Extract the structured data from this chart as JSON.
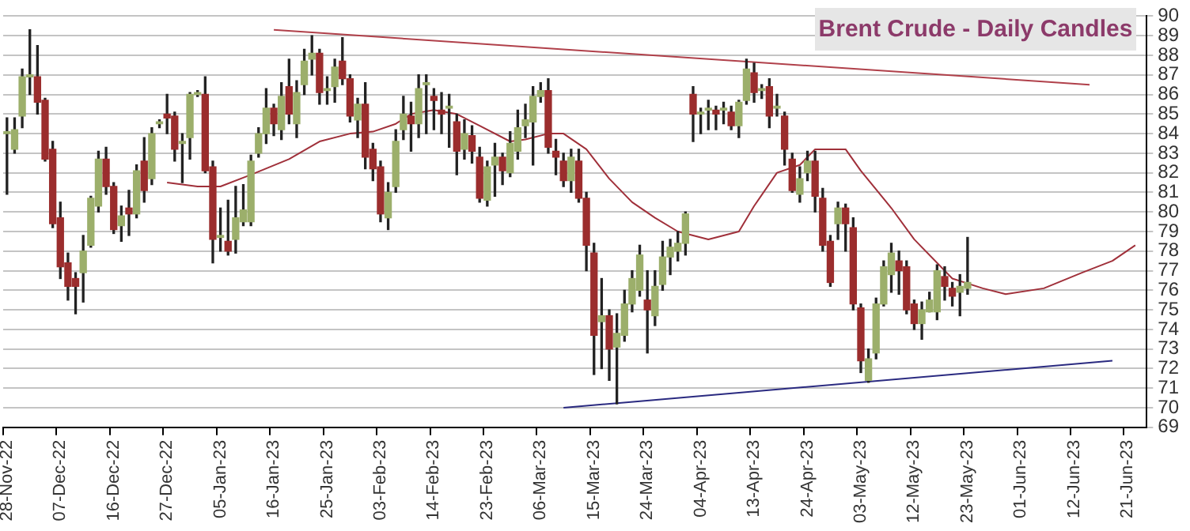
{
  "chart_data": {
    "type": "candlestick",
    "title": "Brent Crude - Daily Candles",
    "categories": [
      "28-Nov-22",
      null,
      null,
      null,
      null,
      null,
      null,
      "07-Dec-22",
      null,
      null,
      null,
      null,
      null,
      null,
      "16-Dec-22",
      null,
      null,
      null,
      null,
      null,
      null,
      "27-Dec-22",
      null,
      null,
      null,
      null,
      null,
      null,
      "05-Jan-23",
      null,
      null,
      null,
      null,
      null,
      null,
      "16-Jan-23",
      null,
      null,
      null,
      null,
      null,
      null,
      "25-Jan-23",
      null,
      null,
      null,
      null,
      null,
      null,
      "03-Feb-23",
      null,
      null,
      null,
      null,
      null,
      null,
      "14-Feb-23",
      null,
      null,
      null,
      null,
      null,
      null,
      "23-Feb-23",
      null,
      null,
      null,
      null,
      null,
      null,
      "06-Mar-23",
      null,
      null,
      null,
      null,
      null,
      null,
      "15-Mar-23",
      null,
      null,
      null,
      null,
      null,
      null,
      "24-Mar-23",
      null,
      null,
      null,
      null,
      null,
      null,
      "04-Apr-23",
      null,
      null,
      null,
      null,
      null,
      null,
      "13-Apr-23",
      null,
      null,
      null,
      null,
      null,
      null,
      "24-Apr-23",
      null,
      null,
      null,
      null,
      null,
      null,
      "03-May-23",
      null,
      null,
      null,
      null,
      null,
      null,
      "12-May-23",
      null,
      null,
      null,
      null,
      null,
      null,
      "23-May-23",
      null,
      null,
      null,
      null,
      null,
      null,
      "01-Jun-23",
      null,
      null,
      null,
      null,
      null,
      null,
      "12-Jun-23",
      null,
      null,
      null,
      null,
      null,
      null,
      "21-Jun-23",
      null,
      null
    ],
    "ohlc": [
      [
        84.0,
        84.8,
        80.9,
        84.1
      ],
      [
        83.2,
        84.8,
        83.0,
        84.2
      ],
      [
        84.9,
        87.3,
        84.3,
        86.9
      ],
      [
        86.9,
        89.3,
        86.0,
        87.0
      ],
      [
        86.9,
        88.5,
        85.0,
        85.6
      ],
      [
        85.7,
        85.8,
        82.6,
        82.7
      ],
      [
        83.2,
        83.6,
        79.2,
        79.4
      ],
      [
        79.7,
        80.5,
        76.6,
        77.2
      ],
      [
        77.4,
        77.9,
        75.5,
        76.2
      ],
      [
        76.6,
        76.9,
        74.8,
        76.2
      ],
      [
        76.9,
        78.8,
        75.4,
        78.0
      ],
      [
        78.3,
        80.8,
        78.2,
        80.7
      ],
      [
        80.3,
        83.1,
        80.0,
        82.7
      ],
      [
        82.7,
        83.3,
        80.9,
        81.3
      ],
      [
        81.3,
        81.5,
        78.9,
        79.1
      ],
      [
        79.3,
        80.3,
        78.5,
        79.8
      ],
      [
        80.2,
        81.1,
        78.8,
        79.9
      ],
      [
        79.9,
        82.4,
        79.7,
        82.1
      ],
      [
        82.6,
        83.8,
        80.5,
        81.1
      ],
      [
        81.7,
        84.3,
        81.4,
        84.0
      ],
      [
        84.5,
        84.7,
        84.3,
        84.6
      ],
      [
        85.0,
        86.0,
        84.0,
        84.8
      ],
      [
        84.9,
        85.1,
        82.6,
        83.2
      ],
      [
        83.5,
        84.0,
        81.5,
        83.6
      ],
      [
        83.8,
        86.1,
        82.7,
        86.0
      ],
      [
        86.0,
        86.2,
        85.9,
        86.1
      ],
      [
        86.0,
        86.9,
        82.0,
        82.1
      ],
      [
        82.3,
        82.6,
        77.4,
        78.6
      ],
      [
        78.7,
        80.2,
        78.0,
        78.8
      ],
      [
        78.5,
        80.6,
        77.8,
        78.0
      ],
      [
        78.6,
        81.3,
        77.9,
        79.7
      ],
      [
        79.5,
        81.4,
        79.3,
        80.1
      ],
      [
        79.5,
        82.9,
        79.3,
        82.6
      ],
      [
        83.0,
        84.3,
        82.8,
        84.0
      ],
      [
        84.0,
        86.3,
        83.5,
        85.3
      ],
      [
        85.3,
        85.5,
        83.9,
        84.5
      ],
      [
        84.2,
        86.6,
        83.7,
        85.9
      ],
      [
        86.4,
        87.8,
        84.5,
        85.0
      ],
      [
        84.5,
        86.7,
        83.8,
        86.1
      ],
      [
        86.5,
        88.3,
        86.0,
        87.7
      ],
      [
        87.8,
        89.0,
        87.0,
        88.1
      ],
      [
        88.1,
        88.3,
        85.5,
        86.1
      ],
      [
        86.2,
        86.9,
        85.5,
        86.3
      ],
      [
        86.4,
        87.8,
        85.6,
        87.4
      ],
      [
        87.7,
        88.9,
        86.5,
        86.8
      ],
      [
        86.8,
        87.0,
        84.6,
        84.9
      ],
      [
        84.7,
        85.8,
        83.8,
        85.5
      ],
      [
        85.5,
        86.6,
        82.2,
        82.8
      ],
      [
        83.2,
        83.5,
        81.6,
        82.2
      ],
      [
        82.3,
        82.6,
        79.5,
        79.9
      ],
      [
        79.7,
        81.5,
        79.1,
        81.0
      ],
      [
        81.3,
        84.2,
        81.0,
        83.6
      ],
      [
        84.2,
        85.9,
        83.7,
        85.0
      ],
      [
        84.9,
        85.6,
        83.1,
        84.5
      ],
      [
        84.5,
        87.0,
        83.8,
        86.3
      ],
      [
        86.5,
        87.0,
        84.0,
        86.6
      ],
      [
        85.9,
        86.3,
        84.2,
        85.7
      ],
      [
        85.2,
        86.1,
        84.0,
        85.0
      ],
      [
        85.3,
        86.0,
        83.3,
        85.4
      ],
      [
        84.6,
        85.0,
        81.9,
        83.1
      ],
      [
        83.2,
        84.7,
        82.7,
        84.0
      ],
      [
        83.9,
        84.4,
        82.5,
        83.1
      ],
      [
        82.8,
        83.3,
        80.5,
        80.7
      ],
      [
        80.6,
        82.6,
        80.3,
        82.3
      ],
      [
        82.4,
        83.5,
        80.8,
        82.8
      ],
      [
        82.8,
        83.0,
        81.4,
        82.1
      ],
      [
        82.0,
        84.1,
        81.8,
        83.5
      ],
      [
        83.1,
        85.2,
        82.7,
        84.3
      ],
      [
        84.4,
        85.5,
        83.8,
        84.7
      ],
      [
        84.6,
        86.4,
        82.4,
        85.9
      ],
      [
        85.9,
        86.6,
        85.6,
        86.2
      ],
      [
        86.2,
        86.8,
        83.0,
        83.3
      ],
      [
        83.1,
        83.7,
        81.9,
        82.8
      ],
      [
        82.6,
        83.0,
        81.3,
        81.6
      ],
      [
        81.6,
        83.2,
        81.0,
        82.8
      ],
      [
        82.6,
        83.2,
        80.5,
        80.7
      ],
      [
        80.7,
        81.0,
        77.0,
        78.3
      ],
      [
        77.9,
        78.4,
        71.7,
        73.7
      ],
      [
        74.4,
        76.6,
        72.0,
        74.7
      ],
      [
        74.7,
        75.0,
        71.4,
        73.0
      ],
      [
        73.1,
        74.8,
        70.2,
        73.8
      ],
      [
        73.7,
        76.0,
        73.4,
        75.3
      ],
      [
        75.3,
        77.0,
        74.9,
        76.6
      ],
      [
        76.0,
        78.3,
        75.7,
        77.8
      ],
      [
        75.5,
        77.0,
        72.8,
        75.0
      ],
      [
        74.7,
        77.0,
        74.2,
        76.2
      ],
      [
        76.3,
        78.5,
        76.0,
        77.7
      ],
      [
        77.7,
        78.6,
        76.8,
        78.2
      ],
      [
        78.0,
        79.0,
        77.5,
        78.4
      ],
      [
        78.4,
        80.0,
        77.8,
        79.9
      ],
      [
        86.0,
        86.4,
        83.6,
        85.0
      ],
      [
        85.0,
        85.3,
        84.0,
        85.1
      ],
      [
        85.2,
        85.7,
        84.2,
        85.3
      ],
      [
        85.2,
        85.4,
        84.2,
        85.0
      ],
      [
        85.2,
        85.6,
        84.5,
        85.3
      ],
      [
        85.1,
        85.4,
        84.2,
        84.4
      ],
      [
        84.4,
        85.7,
        83.8,
        85.6
      ],
      [
        85.7,
        87.8,
        85.5,
        87.3
      ],
      [
        87.1,
        87.6,
        85.6,
        86.1
      ],
      [
        86.2,
        86.5,
        85.8,
        86.3
      ],
      [
        86.4,
        86.8,
        84.3,
        84.9
      ],
      [
        85.3,
        86.0,
        84.9,
        85.4
      ],
      [
        84.9,
        85.1,
        82.4,
        83.2
      ],
      [
        82.7,
        83.0,
        81.0,
        81.1
      ],
      [
        80.9,
        82.3,
        80.5,
        81.7
      ],
      [
        82.0,
        83.1,
        81.6,
        82.6
      ],
      [
        82.6,
        83.1,
        80.0,
        80.8
      ],
      [
        80.7,
        81.2,
        78.0,
        78.3
      ],
      [
        78.5,
        78.8,
        76.2,
        76.4
      ],
      [
        79.4,
        80.5,
        78.6,
        80.2
      ],
      [
        80.2,
        80.4,
        78.0,
        79.4
      ],
      [
        79.2,
        79.7,
        75.0,
        75.3
      ],
      [
        75.1,
        75.3,
        71.8,
        72.4
      ],
      [
        71.4,
        73.0,
        71.3,
        72.5
      ],
      [
        72.8,
        75.6,
        72.5,
        75.3
      ],
      [
        75.3,
        77.5,
        75.2,
        77.2
      ],
      [
        76.8,
        78.4,
        75.9,
        77.9
      ],
      [
        77.5,
        78.0,
        75.8,
        77.0
      ],
      [
        77.2,
        77.5,
        74.8,
        75.0
      ],
      [
        75.3,
        75.5,
        74.0,
        74.3
      ],
      [
        74.3,
        75.4,
        73.5,
        75.0
      ],
      [
        74.9,
        75.9,
        74.9,
        75.5
      ],
      [
        74.9,
        77.3,
        74.5,
        77.0
      ],
      [
        76.7,
        77.2,
        75.5,
        76.2
      ],
      [
        76.1,
        76.4,
        75.2,
        75.7
      ],
      [
        75.9,
        76.8,
        74.7,
        76.2
      ],
      [
        76.1,
        78.7,
        75.8,
        76.4
      ],
      null,
      null,
      null,
      null,
      null,
      null,
      null,
      null,
      null,
      null,
      null,
      null,
      null,
      null,
      null,
      null,
      null,
      null,
      null,
      null,
      null,
      null,
      null
    ],
    "colors": [
      "#9caf6b",
      "#9caf6b",
      "#9caf6b",
      "#9caf6b",
      "#9b2d2d",
      "#9b2d2d",
      "#9b2d2d",
      "#9b2d2d",
      "#9b2d2d",
      "#9b2d2d",
      "#9caf6b",
      "#9caf6b",
      "#9caf6b",
      "#9b2d2d",
      "#9b2d2d",
      "#9caf6b",
      "#9b2d2d",
      "#9caf6b",
      "#9b2d2d",
      "#9caf6b",
      "#9caf6b",
      "#9b2d2d",
      "#9b2d2d",
      "#9caf6b",
      "#9caf6b",
      "#9caf6b",
      "#9b2d2d",
      "#9b2d2d",
      "#9caf6b",
      "#9b2d2d",
      "#9caf6b",
      "#9caf6b",
      "#9caf6b",
      "#9caf6b",
      "#9caf6b",
      "#9b2d2d",
      "#9caf6b",
      "#9b2d2d",
      "#9caf6b",
      "#9caf6b",
      "#9caf6b",
      "#9b2d2d",
      "#9caf6b",
      "#9caf6b",
      "#9b2d2d",
      "#9b2d2d",
      "#9caf6b",
      "#9b2d2d",
      "#9b2d2d",
      "#9b2d2d",
      "#9caf6b",
      "#9caf6b",
      "#9caf6b",
      "#9b2d2d",
      "#9caf6b",
      "#9caf6b",
      "#9b2d2d",
      "#9b2d2d",
      "#9caf6b",
      "#9b2d2d",
      "#9caf6b",
      "#9b2d2d",
      "#9b2d2d",
      "#9caf6b",
      "#9caf6b",
      "#9b2d2d",
      "#9caf6b",
      "#9caf6b",
      "#9caf6b",
      "#9caf6b",
      "#9caf6b",
      "#9b2d2d",
      "#9b2d2d",
      "#9b2d2d",
      "#9caf6b",
      "#9b2d2d",
      "#9b2d2d",
      "#9b2d2d",
      "#9caf6b",
      "#9b2d2d",
      "#9caf6b",
      "#9caf6b",
      "#9caf6b",
      "#9caf6b",
      "#9b2d2d",
      "#9caf6b",
      "#9caf6b",
      "#9caf6b",
      "#9caf6b",
      "#9caf6b",
      "#9b2d2d",
      "#9caf6b",
      "#9caf6b",
      "#9b2d2d",
      "#9caf6b",
      "#9b2d2d",
      "#9caf6b",
      "#9caf6b",
      "#9b2d2d",
      "#9caf6b",
      "#9b2d2d",
      "#9caf6b",
      "#9b2d2d",
      "#9b2d2d",
      "#9caf6b",
      "#9caf6b",
      "#9b2d2d",
      "#9b2d2d",
      "#9b2d2d",
      "#9caf6b",
      "#9b2d2d",
      "#9b2d2d",
      "#9b2d2d",
      "#9caf6b",
      "#9caf6b",
      "#9caf6b",
      "#9caf6b",
      "#9b2d2d",
      "#9b2d2d",
      "#9b2d2d",
      "#9caf6b",
      "#9caf6b",
      "#9caf6b",
      "#9b2d2d",
      "#9b2d2d",
      "#9caf6b",
      "#9caf6b",
      null,
      null,
      null,
      null,
      null,
      null,
      null,
      null,
      null,
      null,
      null,
      null,
      null,
      null,
      null,
      null,
      null,
      null,
      null,
      null,
      null,
      null,
      null
    ],
    "series": [
      {
        "type": "line",
        "color": "#a0303a",
        "values": [
          null,
          null,
          null,
          null,
          null,
          null,
          null,
          null,
          null,
          null,
          null,
          null,
          null,
          null,
          null,
          null,
          null,
          null,
          null,
          null,
          null,
          81.5,
          null,
          null,
          null,
          81.3,
          null,
          null,
          81.3,
          null,
          null,
          null,
          81.9,
          null,
          null,
          null,
          null,
          82.7,
          null,
          null,
          null,
          83.6,
          null,
          null,
          null,
          84.0,
          null,
          null,
          84.1,
          null,
          null,
          84.5,
          null,
          85.0,
          null,
          null,
          85.2,
          null,
          null,
          85.0,
          null,
          null,
          84.4,
          null,
          null,
          null,
          83.6,
          null,
          83.7,
          null,
          null,
          84.0,
          null,
          84.0,
          null,
          null,
          83.2,
          null,
          null,
          81.7,
          null,
          null,
          80.5,
          null,
          null,
          79.7,
          null,
          null,
          79.0,
          null,
          null,
          null,
          78.6,
          null,
          null,
          null,
          79.0,
          null,
          80.3,
          null,
          null,
          82.0,
          null,
          null,
          82.4,
          null,
          83.2,
          null,
          null,
          null,
          83.2,
          null,
          82.1,
          null,
          null,
          null,
          80.2,
          null,
          null,
          78.6,
          null,
          null,
          null,
          null,
          76.6,
          null,
          null,
          null,
          76.1,
          null,
          null,
          75.8,
          null,
          null,
          null,
          null,
          76.1,
          null,
          null,
          null,
          null,
          76.9,
          null,
          null,
          null,
          77.5,
          null,
          null,
          78.3,
          null
        ]
      },
      {
        "type": "line",
        "color": "#b0404a",
        "values": [
          null,
          null,
          null,
          null,
          null,
          null,
          null,
          null,
          null,
          null,
          null,
          null,
          null,
          null,
          null,
          null,
          null,
          null,
          null,
          null,
          null,
          null,
          null,
          null,
          null,
          null,
          null,
          null,
          null,
          null,
          null,
          null,
          null,
          null,
          null,
          89.3,
          null,
          null,
          null,
          null,
          null,
          null,
          null,
          null,
          null,
          null,
          null,
          null,
          null,
          null,
          null,
          null,
          null,
          null,
          null,
          null,
          null,
          null,
          null,
          null,
          null,
          null,
          null,
          null,
          null,
          null,
          null,
          null,
          null,
          null,
          null,
          null,
          null,
          null,
          null,
          null,
          null,
          null,
          null,
          null,
          null,
          null,
          null,
          null,
          null,
          null,
          null,
          null,
          null,
          null,
          null,
          null,
          null,
          null,
          null,
          null,
          null,
          null,
          null,
          null,
          null,
          null,
          null,
          null,
          null,
          null,
          null,
          null,
          null,
          null,
          null,
          null,
          null,
          null,
          null,
          null,
          null,
          null,
          null,
          null,
          null,
          null,
          null,
          null,
          null,
          null,
          null,
          null,
          null,
          null,
          null,
          null,
          null,
          null,
          null,
          null,
          null,
          null,
          null,
          null,
          null,
          null,
          86.5,
          null,
          null,
          null,
          null,
          null,
          null,
          null
        ]
      },
      {
        "type": "line",
        "color": "#2a2a80",
        "values": [
          null,
          null,
          null,
          null,
          null,
          null,
          null,
          null,
          null,
          null,
          null,
          null,
          null,
          null,
          null,
          null,
          null,
          null,
          null,
          null,
          null,
          null,
          null,
          null,
          null,
          null,
          null,
          null,
          null,
          null,
          null,
          null,
          null,
          null,
          null,
          null,
          null,
          null,
          null,
          null,
          null,
          null,
          null,
          null,
          null,
          null,
          null,
          null,
          null,
          null,
          null,
          null,
          null,
          null,
          null,
          null,
          null,
          null,
          null,
          null,
          null,
          null,
          null,
          null,
          null,
          null,
          null,
          null,
          null,
          null,
          null,
          null,
          null,
          70.0,
          null,
          null,
          null,
          null,
          null,
          null,
          null,
          null,
          null,
          null,
          null,
          null,
          null,
          null,
          null,
          null,
          null,
          null,
          null,
          null,
          null,
          null,
          null,
          null,
          null,
          null,
          null,
          null,
          null,
          null,
          null,
          null,
          null,
          null,
          null,
          null,
          null,
          null,
          null,
          null,
          null,
          null,
          null,
          null,
          null,
          null,
          null,
          null,
          null,
          null,
          null,
          null,
          null,
          null,
          null,
          null,
          null,
          null,
          null,
          null,
          null,
          null,
          null,
          null,
          null,
          null,
          null,
          null,
          null,
          null,
          null,
          72.4,
          null,
          null,
          null,
          null
        ]
      }
    ],
    "ylim": [
      69,
      90
    ],
    "yticks": [
      69,
      70,
      71,
      72,
      73,
      74,
      75,
      76,
      77,
      78,
      79,
      80,
      81,
      82,
      83,
      84,
      85,
      86,
      87,
      88,
      89,
      90
    ],
    "grid": "y",
    "legend": false
  }
}
